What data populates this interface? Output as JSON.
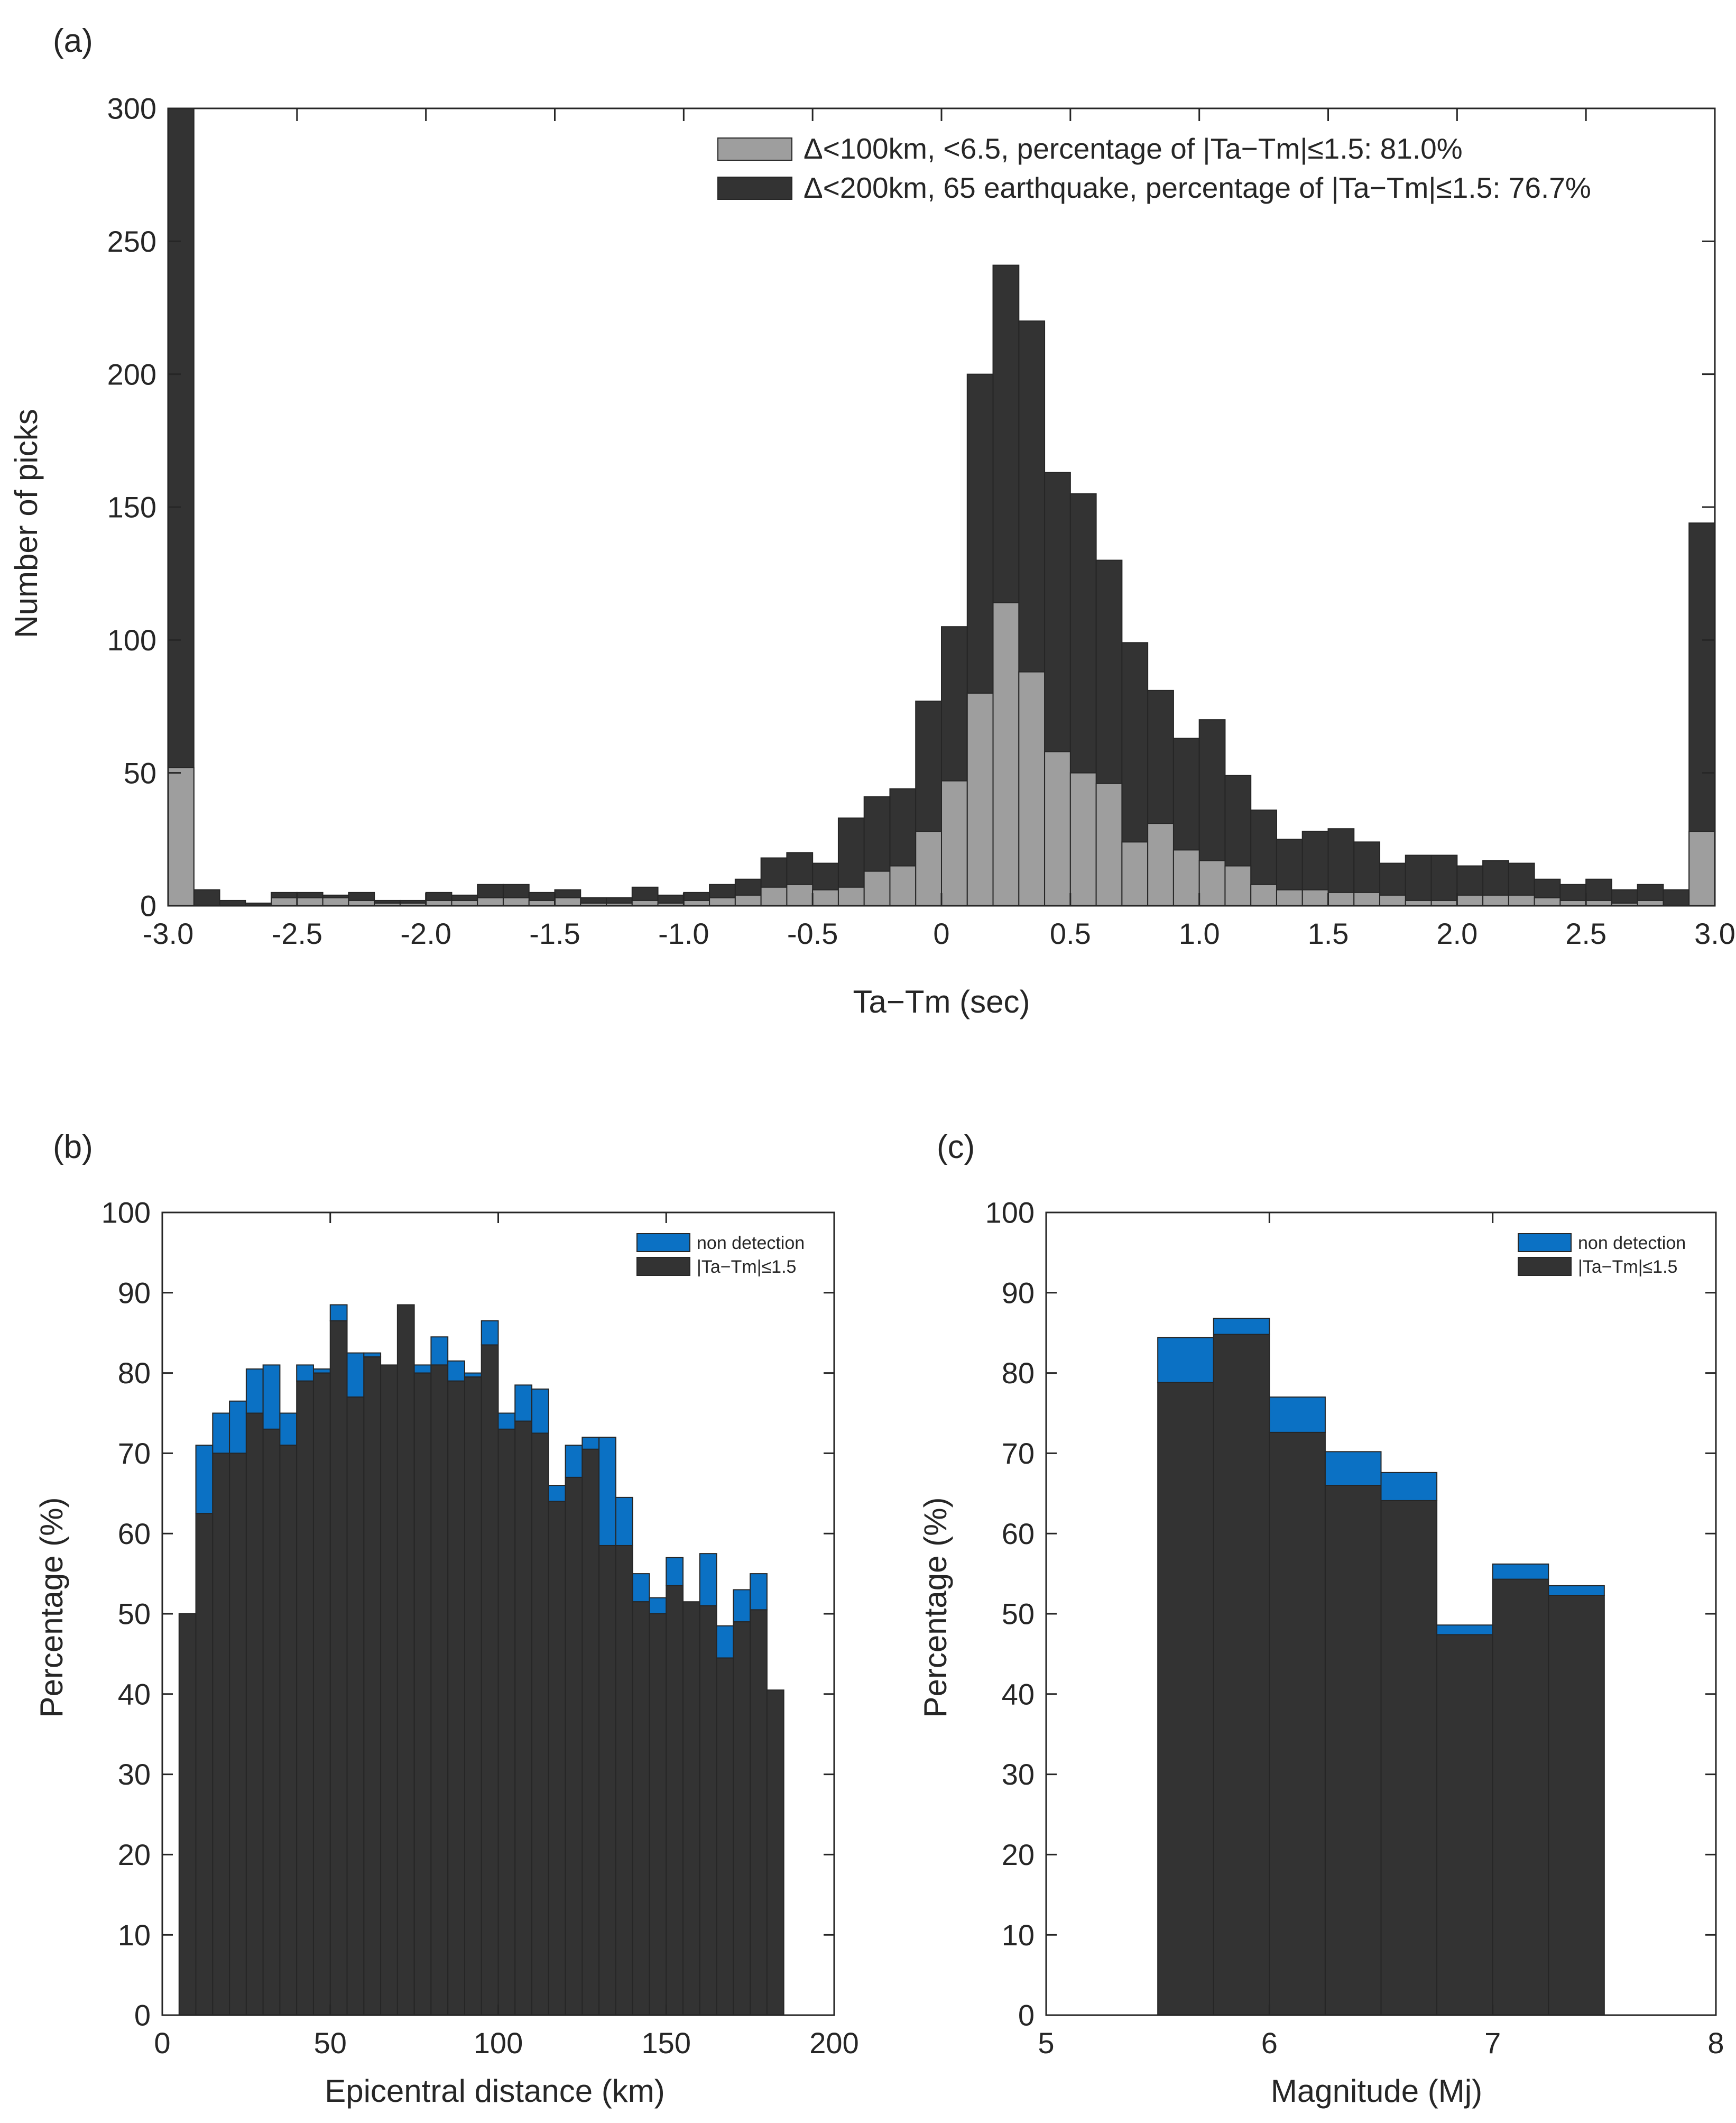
{
  "colors": {
    "dark": "#333333",
    "light": "#9e9e9e",
    "blue": "#0b71c4",
    "axis": "#262626",
    "background": "#ffffff"
  },
  "chart_data": [
    {
      "panel_label": "(a)",
      "type": "bar",
      "subtype": "histogram-overlaid",
      "xlabel": "Ta−Tm (sec)",
      "ylabel": "Number of picks",
      "xlim": [
        -3.0,
        3.0
      ],
      "ylim": [
        0,
        300
      ],
      "x_ticks": [
        -3.0,
        -2.5,
        -2.0,
        -1.5,
        -1.0,
        -0.5,
        0,
        0.5,
        1.0,
        1.5,
        2.0,
        2.5,
        3.0
      ],
      "x_tick_labels": [
        "-3.0",
        "-2.5",
        "-2.0",
        "-1.5",
        "-1.0",
        "-0.5",
        "0",
        "0.5",
        "1.0",
        "1.5",
        "2.0",
        "2.5",
        "3.0"
      ],
      "y_ticks": [
        0,
        50,
        100,
        150,
        200,
        250,
        300
      ],
      "y_tick_labels": [
        "0",
        "50",
        "100",
        "150",
        "200",
        "250",
        "300"
      ],
      "bin_edges_start": -3.0,
      "bin_width": 0.1,
      "legend_position": "top-right",
      "series": [
        {
          "name": "Δ<200km, 65 earthquake, percentage of |Ta−Tm|≤1.5: 76.7%",
          "color": "#333333",
          "values": [
            300,
            6,
            2,
            1,
            5,
            5,
            4,
            5,
            2,
            2,
            5,
            4,
            8,
            8,
            5,
            6,
            3,
            3,
            7,
            4,
            5,
            8,
            10,
            18,
            20,
            16,
            33,
            41,
            44,
            77,
            105,
            200,
            241,
            220,
            163,
            155,
            130,
            99,
            81,
            63,
            70,
            49,
            36,
            25,
            28,
            29,
            24,
            16,
            19,
            19,
            15,
            17,
            16,
            10,
            8,
            10,
            6,
            8,
            6,
            144
          ]
        },
        {
          "name": "Δ<100km, <6.5, percentage of |Ta−Tm|≤1.5: 81.0%",
          "color": "#9e9e9e",
          "values": [
            52,
            0,
            0,
            0,
            3,
            3,
            3,
            2,
            1,
            1,
            2,
            2,
            3,
            3,
            2,
            3,
            1,
            1,
            2,
            1,
            2,
            3,
            4,
            7,
            8,
            6,
            7,
            13,
            15,
            28,
            47,
            80,
            114,
            88,
            58,
            50,
            46,
            24,
            31,
            21,
            17,
            15,
            8,
            6,
            6,
            5,
            5,
            4,
            2,
            2,
            4,
            4,
            4,
            3,
            2,
            2,
            1,
            2,
            0,
            28
          ]
        }
      ]
    },
    {
      "panel_label": "(b)",
      "type": "bar",
      "subtype": "stacked-histogram",
      "xlabel": "Epicentral distance (km)",
      "ylabel": "Percentage (%)",
      "xlim": [
        0,
        200
      ],
      "ylim": [
        0,
        100
      ],
      "x_ticks": [
        0,
        50,
        100,
        150,
        200
      ],
      "x_tick_labels": [
        "0",
        "50",
        "100",
        "150",
        "200"
      ],
      "y_ticks": [
        0,
        10,
        20,
        30,
        40,
        50,
        60,
        70,
        80,
        90,
        100
      ],
      "y_tick_labels": [
        "0",
        "10",
        "20",
        "30",
        "40",
        "50",
        "60",
        "70",
        "80",
        "90",
        "100"
      ],
      "bin_edges_start": 5,
      "bin_width": 5,
      "legend_position": "top-right",
      "series": [
        {
          "name": "|Ta−Tm|≤1.5",
          "color": "#333333",
          "values": [
            50,
            62.5,
            70,
            70,
            75,
            73,
            71,
            79,
            80,
            86.5,
            77,
            82,
            81,
            88.5,
            80,
            81,
            79,
            79.5,
            83.5,
            73,
            74,
            72.5,
            64,
            67,
            70.5,
            58.5,
            58.5,
            51.5,
            50,
            53.5,
            51.5,
            51,
            44.5,
            49,
            50.5,
            40.5
          ]
        },
        {
          "name": "non detection",
          "color": "#0b71c4",
          "values": [
            0,
            8.5,
            5,
            6.5,
            5.5,
            8,
            4,
            2,
            0.5,
            2,
            5.5,
            0.5,
            0,
            0,
            1,
            3.5,
            2.5,
            0.5,
            3,
            2,
            4.5,
            5.5,
            2,
            4,
            1.5,
            13.5,
            6,
            3.5,
            2,
            3.5,
            0,
            6.5,
            4,
            4,
            4.5,
            0
          ]
        }
      ]
    },
    {
      "panel_label": "(c)",
      "type": "bar",
      "subtype": "stacked-histogram",
      "xlabel": "Magnitude (Mj)",
      "ylabel": "Percentage (%)",
      "xlim": [
        5,
        8
      ],
      "ylim": [
        0,
        100
      ],
      "x_ticks": [
        5,
        6,
        7,
        8
      ],
      "x_tick_labels": [
        "5",
        "6",
        "7",
        "8"
      ],
      "y_ticks": [
        0,
        10,
        20,
        30,
        40,
        50,
        60,
        70,
        80,
        90,
        100
      ],
      "y_tick_labels": [
        "0",
        "10",
        "20",
        "30",
        "40",
        "50",
        "60",
        "70",
        "80",
        "90",
        "100"
      ],
      "bin_edges_start": 5.5,
      "bin_width": 0.25,
      "legend_position": "top-right",
      "series": [
        {
          "name": "|Ta−Tm|≤1.5",
          "color": "#333333",
          "values": [
            78.8,
            84.8,
            72.6,
            66,
            64.1,
            47.4,
            54.3,
            52.3
          ]
        },
        {
          "name": "non detection",
          "color": "#0b71c4",
          "values": [
            5.6,
            2.0,
            4.4,
            4.2,
            3.5,
            1.2,
            1.9,
            1.2
          ]
        }
      ]
    }
  ]
}
